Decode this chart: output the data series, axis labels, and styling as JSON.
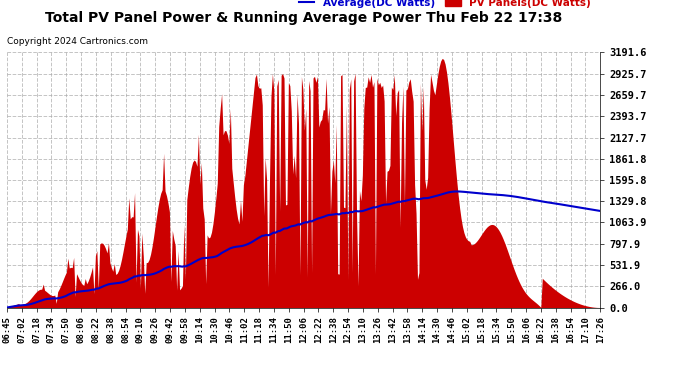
{
  "title": "Total PV Panel Power & Running Average Power Thu Feb 22 17:38",
  "copyright": "Copyright 2024 Cartronics.com",
  "legend_avg": "Average(DC Watts)",
  "legend_pv": "PV Panels(DC Watts)",
  "y_ticks": [
    0.0,
    266.0,
    531.9,
    797.9,
    1063.9,
    1329.8,
    1595.8,
    1861.8,
    2127.7,
    2393.7,
    2659.7,
    2925.7,
    3191.6
  ],
  "ymax": 3191.6,
  "ymin": 0.0,
  "x_labels": [
    "06:45",
    "07:02",
    "07:18",
    "07:34",
    "07:50",
    "08:06",
    "08:22",
    "08:38",
    "08:54",
    "09:10",
    "09:26",
    "09:42",
    "09:58",
    "10:14",
    "10:30",
    "10:46",
    "11:02",
    "11:18",
    "11:34",
    "11:50",
    "12:06",
    "12:22",
    "12:38",
    "12:54",
    "13:10",
    "13:26",
    "13:42",
    "13:58",
    "14:14",
    "14:30",
    "14:46",
    "15:02",
    "15:18",
    "15:34",
    "15:50",
    "16:06",
    "16:22",
    "16:38",
    "16:54",
    "17:10",
    "17:26"
  ],
  "background_color": "#ffffff",
  "plot_bg_color": "#ffffff",
  "grid_color": "#aaaaaa",
  "pv_color": "#cc0000",
  "avg_color": "#0000cc",
  "title_color": "#000000",
  "label_color": "#000000",
  "copyright_color": "#000000",
  "legend_avg_color": "#0000cc",
  "legend_pv_color": "#cc0000"
}
